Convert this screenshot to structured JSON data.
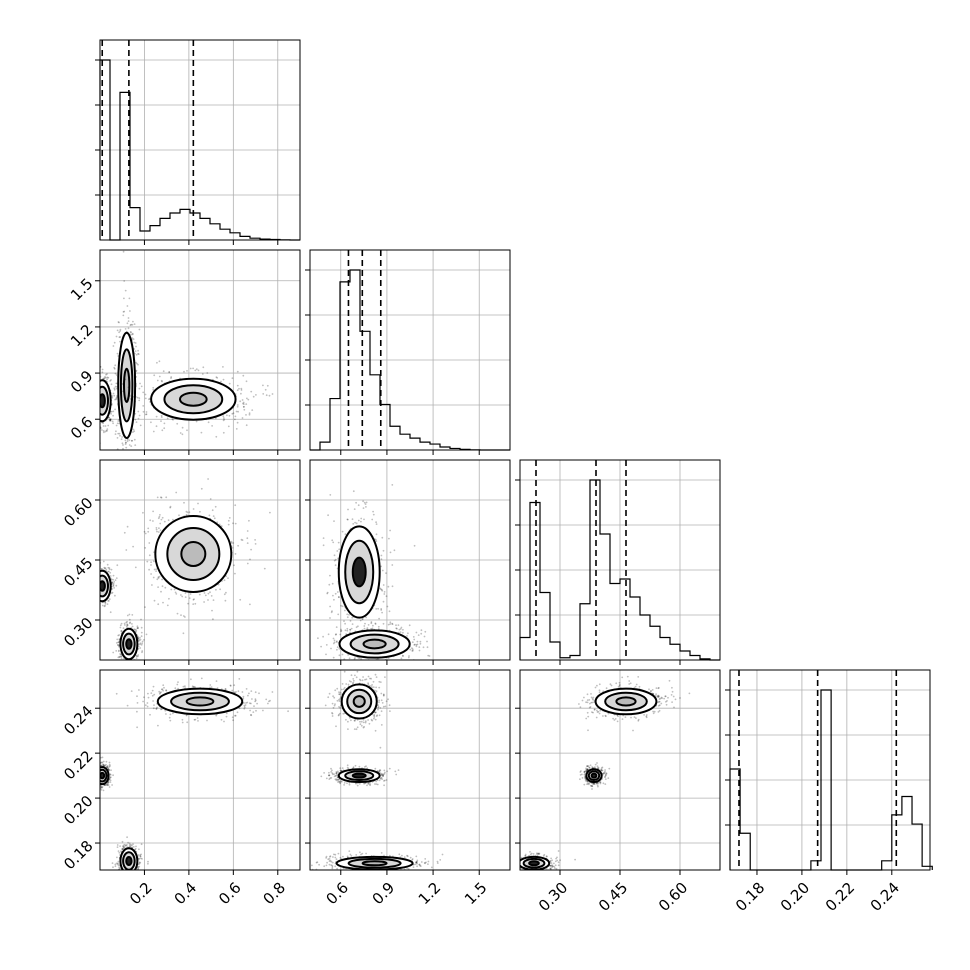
{
  "chart_data": {
    "type": "corner",
    "parameters": [
      {
        "range": [
          0.0,
          0.9
        ],
        "ticks": [
          0.2,
          0.4,
          0.6,
          0.8
        ],
        "tick_labels": [
          "0.2",
          "0.4",
          "0.6",
          "0.8"
        ],
        "quantiles": [
          0.01,
          0.13,
          0.42
        ]
      },
      {
        "range": [
          0.4,
          1.7
        ],
        "ticks": [
          0.6,
          0.9,
          1.2,
          1.5
        ],
        "tick_labels": [
          "0.6",
          "0.9",
          "1.2",
          "1.5"
        ],
        "quantiles": [
          0.65,
          0.74,
          0.86
        ]
      },
      {
        "range": [
          0.2,
          0.7
        ],
        "ticks": [
          0.3,
          0.45,
          0.6
        ],
        "tick_labels": [
          "0.30",
          "0.45",
          "0.60"
        ],
        "quantiles": [
          0.24,
          0.39,
          0.465
        ]
      },
      {
        "range": [
          0.168,
          0.257
        ],
        "ticks": [
          0.18,
          0.2,
          0.22,
          0.24
        ],
        "tick_labels": [
          "0.18",
          "0.20",
          "0.22",
          "0.24"
        ],
        "quantiles": [
          0.172,
          0.207,
          0.242
        ]
      }
    ],
    "histograms": [
      {
        "bins": [
          0.0,
          0.045,
          0.09,
          0.135,
          0.18,
          0.225,
          0.27,
          0.315,
          0.36,
          0.405,
          0.45,
          0.495,
          0.54,
          0.585,
          0.63,
          0.675,
          0.72,
          0.765,
          0.81,
          0.855,
          0.9
        ],
        "counts": [
          100,
          0,
          82,
          18,
          5,
          8,
          12,
          15,
          17,
          15,
          12,
          9,
          6,
          4,
          2,
          1,
          0.5,
          0.3,
          0.1,
          0
        ]
      },
      {
        "bins": [
          0.4,
          0.465,
          0.53,
          0.595,
          0.66,
          0.725,
          0.79,
          0.855,
          0.92,
          0.985,
          1.05,
          1.115,
          1.18,
          1.245,
          1.31,
          1.375,
          1.44,
          1.505,
          1.57,
          1.635,
          1.7
        ],
        "counts": [
          0,
          4,
          26,
          85,
          91,
          60,
          38,
          23,
          12,
          8,
          6,
          4,
          3,
          1.5,
          0.8,
          0.3,
          0.1,
          0,
          0,
          0
        ]
      },
      {
        "bins": [
          0.2,
          0.225,
          0.25,
          0.275,
          0.3,
          0.325,
          0.35,
          0.375,
          0.4,
          0.425,
          0.45,
          0.475,
          0.5,
          0.525,
          0.55,
          0.575,
          0.6,
          0.625,
          0.65,
          0.675,
          0.7
        ],
        "counts": [
          10,
          70,
          30,
          8,
          1,
          2,
          25,
          80,
          56,
          34,
          36,
          28,
          20,
          15,
          10,
          7,
          4,
          2,
          0.5,
          0
        ],
        "bins_note": ""
      },
      {
        "bins": [
          0.168,
          0.1725,
          0.177,
          0.1815,
          0.186,
          0.1905,
          0.195,
          0.1995,
          0.204,
          0.2085,
          0.213,
          0.2175,
          0.222,
          0.2265,
          0.231,
          0.2355,
          0.24,
          0.2445,
          0.249,
          0.2535,
          0.258
        ],
        "counts": [
          55,
          20,
          0,
          0,
          0,
          0,
          0,
          0,
          5,
          98,
          0,
          0,
          0,
          0,
          0,
          5,
          30,
          40,
          25,
          2
        ]
      }
    ],
    "scatter_pairs": [
      {
        "x_param": 0,
        "y_param": 1,
        "clusters": [
          {
            "cx": 0.01,
            "cy": 0.72,
            "sx": 0.02,
            "sy": 0.07,
            "dark": true
          },
          {
            "cx": 0.12,
            "cy": 0.82,
            "sx": 0.02,
            "sy": 0.18,
            "dark": false
          },
          {
            "cx": 0.42,
            "cy": 0.73,
            "sx": 0.1,
            "sy": 0.07,
            "dark": false
          }
        ]
      },
      {
        "x_param": 0,
        "y_param": 2,
        "clusters": [
          {
            "cx": 0.01,
            "cy": 0.385,
            "sx": 0.02,
            "sy": 0.02,
            "dark": true
          },
          {
            "cx": 0.13,
            "cy": 0.24,
            "sx": 0.02,
            "sy": 0.02,
            "dark": true
          },
          {
            "cx": 0.42,
            "cy": 0.465,
            "sx": 0.09,
            "sy": 0.05,
            "dark": false
          }
        ]
      },
      {
        "x_param": 1,
        "y_param": 2,
        "clusters": [
          {
            "cx": 0.72,
            "cy": 0.42,
            "sx": 0.07,
            "sy": 0.06,
            "dark": true
          },
          {
            "cx": 0.82,
            "cy": 0.24,
            "sx": 0.12,
            "sy": 0.018,
            "dark": false
          }
        ]
      },
      {
        "x_param": 0,
        "y_param": 3,
        "clusters": [
          {
            "cx": 0.01,
            "cy": 0.21,
            "sx": 0.015,
            "sy": 0.002,
            "dark": true
          },
          {
            "cx": 0.13,
            "cy": 0.172,
            "sx": 0.02,
            "sy": 0.003,
            "dark": true
          },
          {
            "cx": 0.45,
            "cy": 0.243,
            "sx": 0.1,
            "sy": 0.003,
            "dark": false
          }
        ]
      },
      {
        "x_param": 1,
        "y_param": 3,
        "clusters": [
          {
            "cx": 0.72,
            "cy": 0.243,
            "sx": 0.06,
            "sy": 0.004,
            "dark": false
          },
          {
            "cx": 0.72,
            "cy": 0.21,
            "sx": 0.07,
            "sy": 0.0015,
            "dark": true
          },
          {
            "cx": 0.82,
            "cy": 0.171,
            "sx": 0.13,
            "sy": 0.0015,
            "dark": false
          }
        ]
      },
      {
        "x_param": 2,
        "y_param": 3,
        "clusters": [
          {
            "cx": 0.465,
            "cy": 0.243,
            "sx": 0.04,
            "sy": 0.003,
            "dark": false
          },
          {
            "cx": 0.385,
            "cy": 0.21,
            "sx": 0.01,
            "sy": 0.0015,
            "dark": true
          },
          {
            "cx": 0.235,
            "cy": 0.171,
            "sx": 0.02,
            "sy": 0.0015,
            "dark": true
          }
        ]
      }
    ],
    "grid": true,
    "title": "",
    "xlabel": "",
    "ylabel": ""
  }
}
